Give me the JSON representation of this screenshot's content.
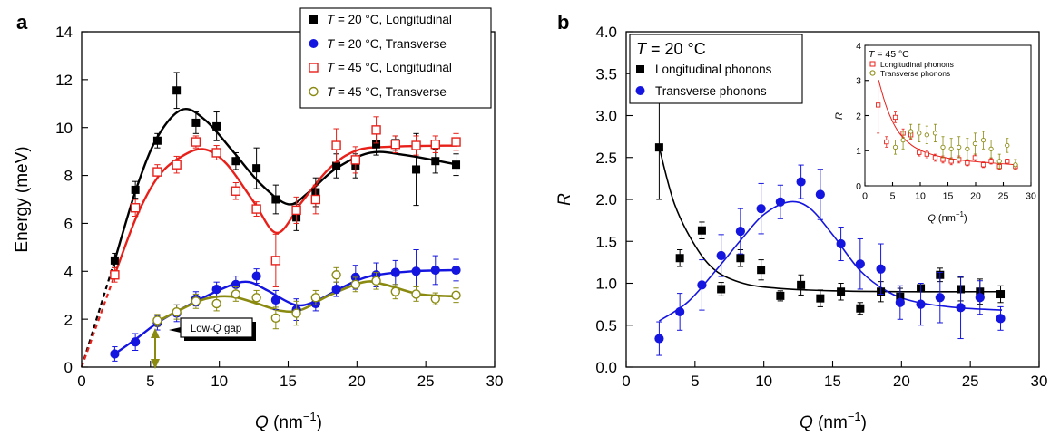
{
  "panel_a": {
    "letter": "a",
    "xlabel_main": "Q",
    "xlabel_unit": " (nm",
    "xlabel_exp": "−1",
    "xlabel_close": ")",
    "ylabel": "Energy (meV)",
    "annotation_pre": "Low-",
    "annotation_q": "Q",
    "annotation_post": " gap",
    "legend": [
      {
        "t": "T",
        "rest": " = 20 °C, Longitudinal"
      },
      {
        "t": "T",
        "rest": " = 20 °C, Transverse"
      },
      {
        "t": "T",
        "rest": " = 45 °C, Longitudinal"
      },
      {
        "t": "T",
        "rest": " = 45 °C, Transverse"
      }
    ]
  },
  "panel_b": {
    "letter": "b",
    "xlabel_main": "Q",
    "xlabel_unit": " (nm",
    "xlabel_exp": "−1",
    "xlabel_close": ")",
    "ylabel": "R",
    "legend_title_t": "T",
    "legend_title_rest": " = 20 °C",
    "legend": [
      "Longitudinal phonons",
      "Transverse phonons"
    ],
    "inset": {
      "title_t": "T",
      "title_rest": " = 45 °C",
      "legend": [
        "Longitudinal phonons",
        "Transverse phonons"
      ],
      "xlabel_main": "Q",
      "xlabel_unit": " (nm",
      "xlabel_exp": "−1",
      "xlabel_close": ")",
      "ylabel": "R"
    }
  },
  "colors": {
    "l20": "#000000",
    "t20": "#1515e0",
    "l45": "#e8201a",
    "t45": "#8a8a10"
  },
  "chart_data": [
    {
      "type": "scatter",
      "panel": "a",
      "xlim": [
        0,
        30
      ],
      "ylim": [
        0,
        14
      ],
      "xticks": [
        0,
        5,
        10,
        15,
        20,
        25,
        30
      ],
      "yticks": [
        0,
        2,
        4,
        6,
        8,
        10,
        12,
        14
      ],
      "xlabel": "Q (nm−1)",
      "ylabel": "Energy (meV)",
      "legend_position": "top-right",
      "annotation": "Low-Q gap",
      "series": [
        {
          "name": "T = 20 °C, Longitudinal",
          "color_key": "l20",
          "marker": "square-filled",
          "x": [
            2.4,
            3.9,
            5.5,
            6.9,
            8.3,
            9.8,
            11.2,
            12.7,
            14.1,
            15.6,
            17.0,
            18.5,
            19.9,
            21.4,
            22.8,
            24.3,
            25.7,
            27.2
          ],
          "y": [
            4.45,
            7.4,
            9.45,
            11.55,
            10.2,
            10.05,
            8.6,
            8.3,
            7.0,
            6.25,
            7.3,
            8.4,
            8.4,
            9.3,
            9.35,
            8.25,
            8.6,
            8.45
          ],
          "err": [
            0.3,
            0.35,
            0.3,
            0.75,
            0.45,
            0.6,
            0.35,
            0.85,
            0.6,
            0.55,
            0.6,
            0.5,
            0.5,
            0.45,
            0.3,
            1.5,
            0.5,
            0.45
          ]
        },
        {
          "name": "T = 20 °C, Transverse",
          "color_key": "t20",
          "marker": "circle-filled",
          "x": [
            2.4,
            3.9,
            5.5,
            6.9,
            8.3,
            9.8,
            11.2,
            12.7,
            14.1,
            15.6,
            17.0,
            18.5,
            19.9,
            21.4,
            22.8,
            24.3,
            25.7,
            27.2
          ],
          "y": [
            0.55,
            1.05,
            1.85,
            2.25,
            2.85,
            3.25,
            3.45,
            3.8,
            2.8,
            2.4,
            2.65,
            3.25,
            3.75,
            3.85,
            3.95,
            4.0,
            4.05,
            4.05
          ],
          "err": [
            0.3,
            0.35,
            0.3,
            0.35,
            0.3,
            0.3,
            0.35,
            0.3,
            0.4,
            0.45,
            0.3,
            0.3,
            0.5,
            0.5,
            0.5,
            0.9,
            0.6,
            0.45
          ]
        },
        {
          "name": "T = 45 °C, Longitudinal",
          "color_key": "l45",
          "marker": "square-open",
          "x": [
            2.4,
            3.9,
            5.5,
            6.9,
            8.3,
            9.8,
            11.2,
            12.7,
            14.1,
            15.6,
            17.0,
            18.5,
            19.9,
            21.4,
            22.8,
            24.3,
            25.7,
            27.2
          ],
          "y": [
            3.85,
            6.65,
            8.15,
            8.45,
            9.4,
            8.95,
            7.35,
            6.6,
            4.45,
            6.55,
            7.0,
            9.25,
            8.65,
            9.9,
            9.3,
            9.25,
            9.3,
            9.4
          ],
          "err": [
            0.3,
            0.35,
            0.3,
            0.35,
            0.25,
            0.3,
            0.35,
            0.3,
            1.1,
            0.55,
            0.6,
            0.7,
            0.55,
            0.55,
            0.35,
            0.4,
            0.35,
            0.35
          ]
        },
        {
          "name": "T = 45 °C, Transverse",
          "color_key": "t45",
          "marker": "circle-open",
          "x": [
            5.5,
            6.9,
            8.3,
            9.8,
            11.2,
            12.7,
            14.1,
            15.6,
            17.0,
            18.5,
            19.9,
            21.4,
            22.8,
            24.3,
            25.7,
            27.2
          ],
          "y": [
            1.95,
            2.3,
            2.75,
            2.65,
            3.05,
            2.9,
            2.05,
            2.25,
            2.9,
            3.85,
            3.45,
            3.6,
            3.15,
            3.05,
            2.85,
            3.0
          ],
          "err": [
            0.25,
            0.3,
            0.3,
            0.3,
            0.3,
            0.3,
            0.45,
            0.5,
            0.3,
            0.3,
            0.3,
            0.35,
            0.3,
            0.3,
            0.25,
            0.3
          ]
        }
      ]
    },
    {
      "type": "scatter",
      "panel": "b",
      "xlim": [
        0,
        30
      ],
      "ylim": [
        0.0,
        4.0
      ],
      "xticks": [
        0,
        5,
        10,
        15,
        20,
        25,
        30
      ],
      "yticks": [
        "0.0",
        "0.5",
        "1.0",
        "1.5",
        "2.0",
        "2.5",
        "3.0",
        "3.5",
        "4.0"
      ],
      "xlabel": "Q (nm−1)",
      "ylabel": "R",
      "legend_position": "top-left",
      "series": [
        {
          "name": "Longitudinal phonons",
          "color_key": "l20",
          "marker": "square-filled",
          "x": [
            2.4,
            3.9,
            5.5,
            6.9,
            8.3,
            9.8,
            11.2,
            12.7,
            14.1,
            15.6,
            17.0,
            18.5,
            19.9,
            21.4,
            22.8,
            24.3,
            25.7,
            27.2
          ],
          "y": [
            2.62,
            1.3,
            1.63,
            0.93,
            1.3,
            1.16,
            0.85,
            0.98,
            0.82,
            0.9,
            0.7,
            0.9,
            0.84,
            0.94,
            1.1,
            0.93,
            0.9,
            0.87
          ],
          "err": [
            0.62,
            0.1,
            0.1,
            0.08,
            0.1,
            0.12,
            0.06,
            0.12,
            0.1,
            0.1,
            0.07,
            0.12,
            0.1,
            0.04,
            0.08,
            0.14,
            0.15,
            0.1
          ]
        },
        {
          "name": "Transverse phonons",
          "color_key": "t20",
          "marker": "circle-filled",
          "x": [
            2.4,
            3.9,
            5.5,
            6.9,
            8.3,
            9.8,
            11.2,
            12.7,
            14.1,
            15.6,
            17.0,
            18.5,
            19.9,
            21.4,
            22.8,
            24.3,
            25.7,
            27.2
          ],
          "y": [
            0.34,
            0.66,
            0.98,
            1.33,
            1.62,
            1.89,
            1.97,
            2.21,
            2.06,
            1.47,
            1.23,
            1.17,
            0.77,
            0.75,
            0.83,
            0.71,
            0.83,
            0.58
          ],
          "err": [
            0.2,
            0.22,
            0.3,
            0.25,
            0.27,
            0.3,
            0.2,
            0.2,
            0.3,
            0.2,
            0.3,
            0.3,
            0.2,
            0.25,
            0.3,
            0.37,
            0.2,
            0.14
          ]
        }
      ]
    },
    {
      "type": "scatter",
      "panel": "b-inset",
      "xlim": [
        0,
        30
      ],
      "ylim": [
        0,
        4
      ],
      "xticks": [
        0,
        5,
        10,
        15,
        20,
        25,
        30
      ],
      "yticks": [
        0,
        1,
        2,
        3,
        4
      ],
      "xlabel": "Q (nm−1)",
      "ylabel": "R",
      "legend_position": "top-left",
      "series": [
        {
          "name": "Longitudinal phonons",
          "color_key": "l45",
          "marker": "square-open",
          "x": [
            2.4,
            3.9,
            5.5,
            6.9,
            8.3,
            9.8,
            11.2,
            12.7,
            14.1,
            15.6,
            17.0,
            18.5,
            19.9,
            21.4,
            22.8,
            24.3,
            25.7,
            27.2
          ],
          "y": [
            2.3,
            1.25,
            1.95,
            1.5,
            1.45,
            0.95,
            0.9,
            0.8,
            0.75,
            0.7,
            0.75,
            0.65,
            0.8,
            0.6,
            0.7,
            0.55,
            0.7,
            0.55
          ],
          "err": [
            0.8,
            0.15,
            0.15,
            0.12,
            0.12,
            0.1,
            0.1,
            0.1,
            0.1,
            0.1,
            0.1,
            0.08,
            0.1,
            0.08,
            0.08,
            0.08,
            0.06,
            0.08
          ]
        },
        {
          "name": "Transverse phonons",
          "color_key": "t45",
          "marker": "circle-open",
          "x": [
            5.5,
            6.9,
            8.3,
            9.8,
            11.2,
            12.7,
            14.1,
            15.6,
            17.0,
            18.5,
            19.9,
            21.4,
            22.8,
            24.3,
            25.7,
            27.2
          ],
          "y": [
            1.1,
            1.3,
            1.55,
            1.5,
            1.45,
            1.5,
            1.1,
            1.05,
            1.1,
            1.05,
            1.2,
            1.3,
            1.05,
            0.7,
            1.15,
            0.6
          ],
          "err": [
            0.2,
            0.25,
            0.2,
            0.25,
            0.25,
            0.25,
            0.3,
            0.3,
            0.3,
            0.3,
            0.3,
            0.25,
            0.25,
            0.2,
            0.2,
            0.15
          ]
        }
      ]
    }
  ]
}
